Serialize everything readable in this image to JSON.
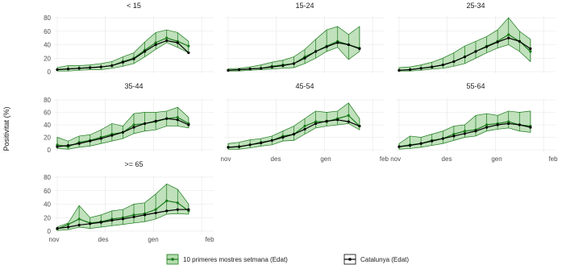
{
  "chart_data": {
    "type": "line",
    "ylabel": "Positivitat (%)",
    "ylim": [
      0,
      80
    ],
    "y_ticks": [
      "0",
      "20",
      "40",
      "60",
      "80"
    ],
    "x_ticks": [
      "nov",
      "des",
      "gen",
      "feb"
    ],
    "x_ticks_joined": [
      "nov",
      "des",
      "gen",
      "feb nov",
      "des",
      "gen",
      "feb"
    ],
    "grid": true,
    "legend_position": "bottom",
    "series": [
      {
        "name": "10 primeres mostres setmana (Edat)",
        "color": "#1a7a1a",
        "fill": "#b5dcb0"
      },
      {
        "name": "Catalunya (Edat)",
        "color": "#000000"
      }
    ],
    "x_weeks": [
      0,
      1,
      2,
      3,
      4,
      5,
      6,
      7,
      8,
      9,
      10,
      11,
      12
    ],
    "panels": [
      {
        "label": "< 15",
        "sample": [
          3,
          4,
          5,
          6,
          7,
          9,
          15,
          20,
          32,
          43,
          50,
          45,
          38
        ],
        "lower": [
          1,
          1,
          2,
          3,
          3,
          5,
          8,
          12,
          22,
          33,
          43,
          36,
          28
        ],
        "upper": [
          6,
          9,
          9,
          10,
          12,
          15,
          22,
          28,
          44,
          58,
          62,
          58,
          45
        ],
        "catalunya": [
          3,
          4,
          5,
          6,
          7,
          9,
          14,
          19,
          30,
          40,
          46,
          43,
          28
        ]
      },
      {
        "label": "15-24",
        "sample": [
          2,
          3,
          4,
          5,
          8,
          10,
          12,
          22,
          30,
          38,
          45,
          40,
          35
        ],
        "lower": [
          1,
          1,
          2,
          3,
          4,
          5,
          6,
          12,
          20,
          30,
          36,
          18,
          30
        ],
        "upper": [
          4,
          5,
          7,
          10,
          14,
          17,
          22,
          33,
          48,
          62,
          67,
          55,
          67
        ],
        "catalunya": [
          2,
          3,
          4,
          5,
          7,
          9,
          12,
          20,
          30,
          37,
          43,
          40,
          34
        ]
      },
      {
        "label": "25-34",
        "sample": [
          2,
          3,
          5,
          7,
          10,
          15,
          22,
          30,
          38,
          45,
          55,
          45,
          30
        ],
        "lower": [
          1,
          1,
          2,
          4,
          5,
          8,
          12,
          20,
          28,
          35,
          40,
          30,
          15
        ],
        "upper": [
          6,
          7,
          10,
          14,
          20,
          28,
          38,
          45,
          52,
          62,
          80,
          60,
          48
        ],
        "catalunya": [
          2,
          3,
          5,
          7,
          10,
          15,
          22,
          30,
          37,
          44,
          50,
          45,
          34
        ]
      },
      {
        "label": "35-44",
        "sample": [
          8,
          5,
          12,
          15,
          20,
          25,
          28,
          40,
          42,
          45,
          50,
          52,
          42
        ],
        "lower": [
          2,
          1,
          4,
          6,
          10,
          14,
          18,
          26,
          30,
          32,
          38,
          38,
          35
        ],
        "upper": [
          20,
          14,
          22,
          24,
          32,
          42,
          38,
          58,
          60,
          60,
          62,
          68,
          52
        ],
        "catalunya": [
          5,
          7,
          10,
          14,
          18,
          23,
          28,
          36,
          42,
          46,
          50,
          48,
          40
        ]
      },
      {
        "label": "45-54",
        "sample": [
          4,
          5,
          8,
          12,
          15,
          22,
          25,
          38,
          45,
          45,
          50,
          55,
          38
        ],
        "lower": [
          1,
          1,
          3,
          6,
          8,
          14,
          15,
          25,
          35,
          38,
          40,
          42,
          32
        ],
        "upper": [
          10,
          12,
          16,
          18,
          22,
          30,
          38,
          50,
          62,
          60,
          62,
          75,
          50
        ],
        "catalunya": [
          4,
          5,
          8,
          11,
          15,
          20,
          25,
          33,
          42,
          46,
          48,
          45,
          38
        ]
      },
      {
        "label": "55-64",
        "sample": [
          5,
          8,
          10,
          15,
          18,
          25,
          30,
          32,
          40,
          42,
          45,
          40,
          38
        ],
        "lower": [
          1,
          2,
          4,
          7,
          10,
          15,
          20,
          22,
          30,
          33,
          35,
          30,
          28
        ],
        "upper": [
          10,
          22,
          20,
          25,
          30,
          38,
          40,
          55,
          58,
          55,
          62,
          60,
          62
        ],
        "catalunya": [
          5,
          7,
          10,
          14,
          18,
          22,
          26,
          30,
          36,
          40,
          42,
          40,
          36
        ]
      },
      {
        "label": ">= 65",
        "sample": [
          3,
          10,
          18,
          12,
          14,
          18,
          20,
          24,
          26,
          32,
          45,
          42,
          30
        ],
        "lower": [
          1,
          2,
          6,
          4,
          6,
          8,
          10,
          12,
          14,
          18,
          25,
          26,
          25
        ],
        "upper": [
          6,
          12,
          38,
          20,
          24,
          30,
          32,
          40,
          42,
          55,
          70,
          62,
          40
        ],
        "catalunya": [
          4,
          6,
          9,
          11,
          13,
          16,
          18,
          21,
          24,
          27,
          30,
          32,
          32
        ]
      }
    ]
  }
}
